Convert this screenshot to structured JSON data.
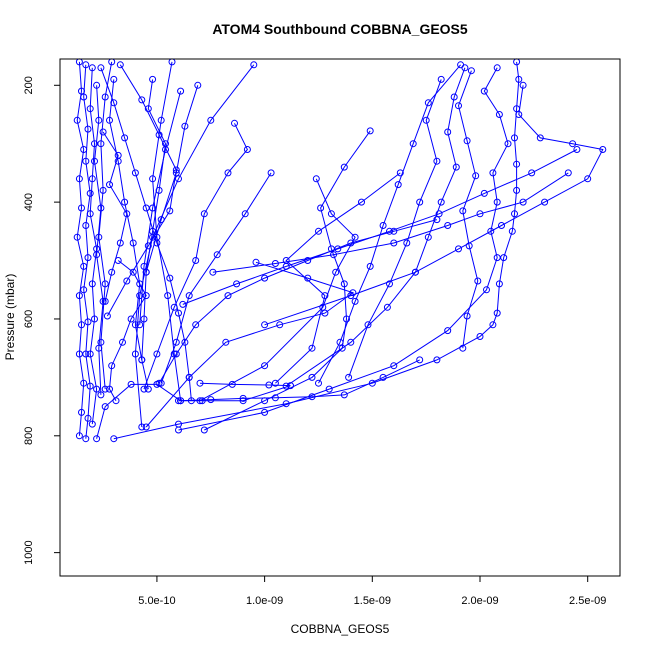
{
  "chart_data": {
    "type": "line",
    "title": "ATOM4 Southbound COBBNA_GEOS5",
    "xlabel": "COBBNA_GEOS5",
    "ylabel": "Pressure (mbar)",
    "xlim": [
      5e-11,
      2.65e-09
    ],
    "ylim": [
      1040,
      155
    ],
    "y_reversed": true,
    "x_ticks": [
      {
        "value": 5e-10,
        "label": "5.0e-10"
      },
      {
        "value": 1e-09,
        "label": "1.0e-09"
      },
      {
        "value": 1.5e-09,
        "label": "1.5e-09"
      },
      {
        "value": 2e-09,
        "label": "2.0e-09"
      },
      {
        "value": 2.5e-09,
        "label": "2.5e-09"
      }
    ],
    "y_ticks": [
      {
        "value": 200,
        "label": "200"
      },
      {
        "value": 400,
        "label": "400"
      },
      {
        "value": 600,
        "label": "600"
      },
      {
        "value": 800,
        "label": "800"
      },
      {
        "value": 1000,
        "label": "1000"
      }
    ],
    "grid": false,
    "series_color": "#0000ff",
    "marker": "open-circle",
    "series": [
      {
        "x": [
          1.4e-10,
          1.5e-10,
          1.3e-10,
          1.6e-10,
          1.4e-10,
          1.5e-10,
          1.3e-10,
          1.6e-10,
          1.4e-10,
          1.5e-10,
          1.4e-10,
          1.6e-10,
          1.5e-10,
          1.4e-10
        ],
        "y": [
          160,
          210,
          260,
          310,
          360,
          410,
          460,
          510,
          560,
          610,
          660,
          710,
          760,
          800
        ]
      },
      {
        "x": [
          1.7e-10,
          1.6e-10,
          1.8e-10,
          1.7e-10,
          1.9e-10,
          1.7e-10,
          1.8e-10,
          1.6e-10,
          1.8e-10,
          1.7e-10,
          1.9e-10,
          1.8e-10,
          1.7e-10
        ],
        "y": [
          165,
          220,
          275,
          330,
          385,
          440,
          495,
          550,
          605,
          660,
          715,
          770,
          805
        ]
      },
      {
        "x": [
          2e-10,
          1.9e-10,
          2.1e-10,
          2e-10,
          1.9e-10,
          2.2e-10,
          2e-10,
          2.1e-10,
          1.9e-10,
          2.2e-10,
          2e-10
        ],
        "y": [
          170,
          240,
          300,
          360,
          420,
          480,
          540,
          600,
          660,
          720,
          780
        ]
      },
      {
        "x": [
          2.4e-10,
          3e-10,
          3.5e-10,
          4e-10,
          4.5e-10,
          5e-10,
          5.6e-10,
          6e-10,
          6.3e-10,
          6.5e-10,
          6.6e-10
        ],
        "y": [
          170,
          230,
          290,
          350,
          410,
          470,
          530,
          590,
          640,
          700,
          740
        ]
      },
      {
        "x": [
          3e-10,
          2.8e-10,
          3.2e-10,
          3.5e-10,
          3.9e-10,
          4.2e-10,
          4e-10,
          4.3e-10,
          4.6e-10
        ],
        "y": [
          190,
          260,
          330,
          400,
          470,
          540,
          610,
          670,
          720
        ]
      },
      {
        "x": [
          5.7e-10,
          5.2e-10,
          4.8e-10,
          5e-10,
          5.5e-10,
          5.8e-10,
          6.1e-10
        ],
        "y": [
          160,
          260,
          360,
          460,
          560,
          660,
          740
        ]
      },
      {
        "x": [
          9.5e-10,
          7.5e-10,
          6e-10,
          4.8e-10,
          4.2e-10,
          4e-10,
          4.3e-10
        ],
        "y": [
          165,
          260,
          360,
          460,
          560,
          660,
          785
        ]
      },
      {
        "x": [
          8.6e-10,
          9.2e-10,
          8.3e-10,
          7.2e-10,
          6.8e-10,
          5.8e-10,
          5e-10,
          4.4e-10
        ],
        "y": [
          265,
          310,
          350,
          420,
          500,
          580,
          660,
          720
        ]
      },
      {
        "x": [
          1.03e-09,
          9.1e-10,
          7.8e-10,
          6.5e-10,
          5.9e-10,
          5.2e-10
        ],
        "y": [
          350,
          420,
          490,
          560,
          640,
          710
        ]
      },
      {
        "x": [
          9.6e-10,
          1.2e-09,
          1.41e-09,
          1.28e-09,
          1.07e-09,
          8.2e-10,
          6.5e-10,
          4.5e-10
        ],
        "y": [
          503,
          530,
          555,
          590,
          610,
          640,
          700,
          785
        ]
      },
      {
        "x": [
          1.24e-09,
          1.31e-09,
          1.42e-09,
          1.33e-09,
          1.27e-09,
          1e-09,
          7e-10
        ],
        "y": [
          360,
          420,
          460,
          520,
          580,
          680,
          740
        ]
      },
      {
        "x": [
          1.49e-09,
          1.37e-09,
          1.26e-09,
          1.31e-09,
          1.37e-09,
          1.38e-09,
          1.36e-09,
          1.22e-09,
          1e-09,
          7.2e-10
        ],
        "y": [
          278,
          340,
          410,
          480,
          540,
          600,
          650,
          700,
          740,
          790
        ]
      },
      {
        "x": [
          1.91e-09,
          1.76e-09,
          1.69e-09,
          1.62e-09,
          1.55e-09,
          1.49e-09,
          1.42e-09,
          1.35e-09,
          1.25e-09
        ],
        "y": [
          165,
          230,
          300,
          370,
          440,
          510,
          570,
          640,
          710
        ]
      },
      {
        "x": [
          1.82e-09,
          1.75e-09,
          1.8e-09,
          1.72e-09,
          1.66e-09,
          1.58e-09,
          1.48e-09,
          1.39e-09
        ],
        "y": [
          190,
          260,
          330,
          400,
          470,
          540,
          610,
          700
        ]
      },
      {
        "x": [
          1.93e-09,
          1.88e-09,
          1.85e-09,
          1.89e-09,
          1.82e-09,
          1.76e-09,
          1.7e-09,
          1.57e-09,
          1.4e-09,
          1.1e-09
        ],
        "y": [
          170,
          220,
          280,
          340,
          400,
          460,
          520,
          580,
          640,
          715
        ]
      },
      {
        "x": [
          1.96e-09,
          1.9e-09,
          1.94e-09,
          1.98e-09,
          1.92e-09,
          1.95e-09,
          1.99e-09,
          1.94e-09,
          1.92e-09
        ],
        "y": [
          175,
          235,
          295,
          355,
          415,
          475,
          535,
          595,
          650
        ]
      },
      {
        "x": [
          2.08e-09,
          2.02e-09,
          2.09e-09,
          2.13e-09,
          2.06e-09,
          2.08e-09,
          2.05e-09,
          2.08e-09,
          2.03e-09,
          1.85e-09,
          1.6e-09,
          1.3e-09,
          1e-09,
          6e-10
        ],
        "y": [
          170,
          210,
          250,
          300,
          350,
          400,
          450,
          495,
          550,
          620,
          680,
          720,
          760,
          790
        ]
      },
      {
        "x": [
          2.17e-09,
          2.18e-09,
          2.17e-09,
          2.16e-09,
          2.17e-09,
          2.17e-09,
          2.16e-09,
          2.15e-09,
          2.11e-09,
          2.09e-09,
          2.08e-09,
          2.06e-09,
          2e-09,
          1.8e-09,
          1.5e-09,
          1.1e-09,
          6e-10,
          3e-10
        ],
        "y": [
          160,
          190,
          240,
          290,
          335,
          380,
          420,
          450,
          495,
          540,
          590,
          610,
          630,
          670,
          710,
          745,
          780,
          805
        ]
      },
      {
        "x": [
          2.2e-09,
          2.18e-09,
          2.28e-09,
          2.43e-09,
          2.57e-09,
          2.5e-09,
          2.3e-09,
          2.1e-09,
          1.9e-09,
          1.7e-09,
          1.4e-09,
          1e-09
        ],
        "y": [
          200,
          250,
          290,
          300,
          310,
          360,
          400,
          440,
          480,
          520,
          560,
          610
        ]
      },
      {
        "x": [
          2.41e-09,
          2.2e-09,
          2e-09,
          1.85e-09,
          1.6e-09,
          1.32e-09,
          1.05e-09,
          7.6e-10
        ],
        "y": [
          350,
          400,
          420,
          440,
          470,
          490,
          505,
          520
        ]
      },
      {
        "x": [
          2.45e-09,
          2.24e-09,
          2.02e-09,
          1.81e-09,
          1.58e-09,
          1.34e-09,
          1.1e-09,
          8.7e-10,
          6.2e-10
        ],
        "y": [
          310,
          350,
          385,
          420,
          450,
          480,
          510,
          540,
          575
        ]
      },
      {
        "x": [
          1.8e-09,
          1.6e-09,
          1.4e-09,
          1.2e-09,
          1e-09,
          8.3e-10,
          6.8e-10,
          5.9e-10,
          5.1e-10
        ],
        "y": [
          430,
          450,
          470,
          500,
          530,
          560,
          610,
          660,
          710
        ]
      },
      {
        "x": [
          1.63e-09,
          1.45e-09,
          1.25e-09,
          1.1e-09,
          1.28e-09,
          1.22e-09,
          1.05e-09
        ],
        "y": [
          350,
          400,
          450,
          500,
          560,
          650,
          710
        ]
      },
      {
        "x": [
          6e-10,
          7.5e-10,
          9e-10,
          1.05e-09,
          1.22e-09,
          1.37e-09,
          1.55e-09,
          1.72e-09
        ],
        "y": [
          740,
          738,
          736,
          735,
          733,
          730,
          700,
          670
        ]
      },
      {
        "x": [
          7e-10,
          8.5e-10,
          1.02e-09,
          1.12e-09,
          9e-10,
          7.1e-10,
          6.1e-10,
          5e-10,
          3.8e-10,
          2.6e-10,
          2.2e-10
        ],
        "y": [
          710,
          712,
          713,
          714,
          740,
          740,
          740,
          712,
          712,
          750,
          805
        ]
      },
      {
        "x": [
          3.3e-10,
          4.3e-10,
          5.1e-10,
          5.9e-10,
          5.6e-10,
          4.6e-10,
          3.6e-10,
          2.7e-10
        ],
        "y": [
          165,
          225,
          285,
          345,
          415,
          475,
          535,
          595
        ]
      },
      {
        "x": [
          3.2e-10,
          3.9e-10,
          4.5e-10,
          3.8e-10,
          3.4e-10,
          2.9e-10,
          2.8e-10,
          3.1e-10
        ],
        "y": [
          500,
          520,
          560,
          600,
          640,
          680,
          720,
          740
        ]
      },
      {
        "x": [
          2.5e-10,
          3.2e-10,
          2.8e-10,
          3.6e-10,
          3.3e-10,
          2.9e-10,
          2.6e-10
        ],
        "y": [
          280,
          320,
          370,
          420,
          470,
          520,
          570
        ]
      },
      {
        "x": [
          4.8e-10,
          4.6e-10,
          5.4e-10,
          5.1e-10,
          4.8e-10,
          4.5e-10,
          4.4e-10,
          4.3e-10
        ],
        "y": [
          190,
          240,
          300,
          380,
          450,
          520,
          600,
          670
        ]
      },
      {
        "x": [
          6.1e-10,
          5.4e-10,
          4.8e-10,
          4.4e-10,
          4.2e-10
        ],
        "y": [
          210,
          310,
          410,
          510,
          610
        ]
      },
      {
        "x": [
          6.9e-10,
          6.3e-10,
          5.9e-10,
          5.2e-10,
          4.5e-10
        ],
        "y": [
          200,
          270,
          350,
          430,
          520
        ]
      },
      {
        "x": [
          2.9e-10,
          2.6e-10,
          2.4e-10,
          2.5e-10,
          2.3e-10,
          2.6e-10,
          2.4e-10,
          2.6e-10
        ],
        "y": [
          160,
          220,
          300,
          380,
          460,
          540,
          640,
          720
        ]
      },
      {
        "x": [
          2.2e-10,
          2.3e-10,
          2.1e-10,
          2.4e-10,
          2.2e-10,
          2.5e-10,
          2.3e-10,
          2.4e-10
        ],
        "y": [
          200,
          260,
          330,
          410,
          490,
          570,
          650,
          730
        ]
      }
    ]
  }
}
